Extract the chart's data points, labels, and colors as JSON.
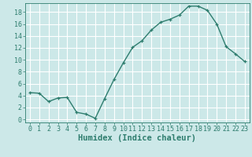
{
  "x": [
    0,
    1,
    2,
    3,
    4,
    5,
    6,
    7,
    8,
    9,
    10,
    11,
    12,
    13,
    14,
    15,
    16,
    17,
    18,
    19,
    20,
    21,
    22,
    23
  ],
  "y": [
    4.5,
    4.4,
    3.0,
    3.6,
    3.7,
    1.2,
    0.9,
    0.2,
    3.5,
    6.7,
    9.5,
    12.1,
    13.2,
    15.0,
    16.3,
    16.8,
    17.5,
    19.0,
    19.0,
    18.3,
    16.0,
    12.2,
    11.0,
    9.7
  ],
  "line_color": "#2e7d6e",
  "marker": "+",
  "marker_size": 3,
  "line_width": 1.0,
  "xlabel": "Humidex (Indice chaleur)",
  "xlabel_fontsize": 7.5,
  "xlabel_fontweight": "bold",
  "background_color": "#cce8e8",
  "grid_color": "#ffffff",
  "ylim": [
    -0.5,
    19.5
  ],
  "xlim": [
    -0.5,
    23.5
  ],
  "yticks": [
    0,
    2,
    4,
    6,
    8,
    10,
    12,
    14,
    16,
    18
  ],
  "xticks": [
    0,
    1,
    2,
    3,
    4,
    5,
    6,
    7,
    8,
    9,
    10,
    11,
    12,
    13,
    14,
    15,
    16,
    17,
    18,
    19,
    20,
    21,
    22,
    23
  ],
  "tick_fontsize": 6,
  "fig_width": 3.2,
  "fig_height": 2.0,
  "dpi": 100
}
